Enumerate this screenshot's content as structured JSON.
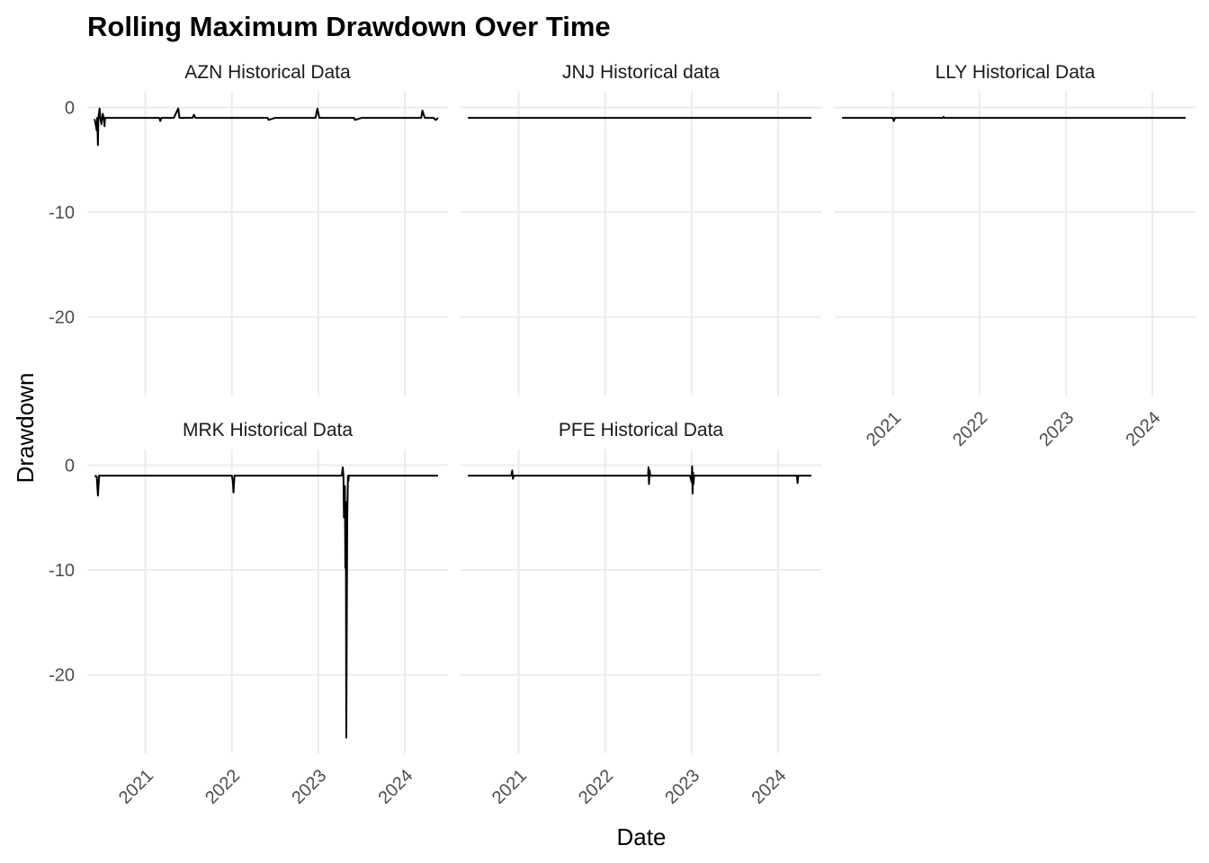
{
  "chart_data": {
    "type": "line",
    "layout": "facet_wrap",
    "title": "Rolling Maximum Drawdown Over Time",
    "xlabel": "Date",
    "ylabel": "Drawdown",
    "x_ticks": [
      "2021",
      "2022",
      "2023",
      "2024"
    ],
    "y_ticks": [
      0,
      -10,
      -20
    ],
    "xlim": [
      "2020-05-01",
      "2024-07-01"
    ],
    "ylim": [
      -27.5,
      1.5
    ],
    "grid": true,
    "legend": "none",
    "line_color": "#000000",
    "facets": [
      {
        "name": "AZN Historical Data",
        "x": [
          "2020-06-01",
          "2020-06-10",
          "2020-06-12",
          "2020-06-15",
          "2020-06-17",
          "2020-06-22",
          "2020-06-25",
          "2020-06-30",
          "2020-07-05",
          "2020-07-10",
          "2020-07-13",
          "2020-07-15",
          "2020-07-18",
          "2020-08-01",
          "2021-01-01",
          "2021-03-01",
          "2021-03-05",
          "2021-03-10",
          "2021-05-01",
          "2021-05-20",
          "2021-05-25",
          "2021-06-01",
          "2021-07-20",
          "2021-07-25",
          "2021-08-01",
          "2022-06-01",
          "2022-06-05",
          "2022-07-01",
          "2022-12-20",
          "2022-12-28",
          "2023-01-05",
          "2023-06-01",
          "2023-06-05",
          "2023-07-01",
          "2024-01-01",
          "2024-03-10",
          "2024-03-15",
          "2024-03-25",
          "2024-05-01",
          "2024-05-10",
          "2024-05-20"
        ],
        "y": [
          -1.1,
          -2.2,
          -1.0,
          -3.6,
          -1.0,
          -0.1,
          -1.0,
          -1.6,
          -0.6,
          -1.0,
          -1.8,
          -1.0,
          -1.0,
          -1.0,
          -1.0,
          -1.0,
          -1.3,
          -1.0,
          -1.0,
          -0.1,
          -1.0,
          -1.0,
          -1.0,
          -0.7,
          -1.0,
          -1.0,
          -1.2,
          -1.0,
          -1.0,
          -0.1,
          -1.0,
          -1.0,
          -1.2,
          -1.0,
          -1.0,
          -1.0,
          -0.3,
          -1.0,
          -1.0,
          -1.2,
          -1.0
        ]
      },
      {
        "name": "JNJ Historical data",
        "x": [
          "2020-06-01",
          "2024-05-20"
        ],
        "y": [
          -1.0,
          -1.0
        ]
      },
      {
        "name": "LLY Historical Data",
        "x": [
          "2020-06-01",
          "2021-01-01",
          "2021-01-05",
          "2021-01-10",
          "2021-08-01",
          "2021-08-03",
          "2021-08-06",
          "2024-05-20"
        ],
        "y": [
          -1.0,
          -1.0,
          -1.3,
          -1.0,
          -1.0,
          -0.9,
          -1.0,
          -1.0
        ]
      },
      {
        "name": "MRK Historical Data",
        "x": [
          "2020-06-01",
          "2020-06-10",
          "2020-06-15",
          "2020-06-20",
          "2020-06-25",
          "2022-01-01",
          "2022-01-05",
          "2022-01-08",
          "2022-01-12",
          "2022-01-20",
          "2023-03-01",
          "2023-04-10",
          "2023-04-14",
          "2023-04-17",
          "2023-04-19",
          "2023-04-23",
          "2023-04-25",
          "2023-04-27",
          "2023-04-29",
          "2023-05-01",
          "2023-05-03",
          "2023-05-06",
          "2023-05-08",
          "2023-05-10",
          "2023-05-20",
          "2024-05-20"
        ],
        "y": [
          -1.0,
          -1.1,
          -2.9,
          -1.0,
          -1.0,
          -1.0,
          -1.5,
          -2.6,
          -1.0,
          -1.0,
          -1.0,
          -1.0,
          -0.2,
          -1.0,
          -5.0,
          -2.0,
          -9.8,
          -3.5,
          -26.0,
          -15.0,
          -5.0,
          -1.0,
          -1.5,
          -1.0,
          -1.0,
          -1.0
        ]
      },
      {
        "name": "PFE Historical Data",
        "x": [
          "2020-06-01",
          "2020-12-01",
          "2020-12-05",
          "2020-12-08",
          "2020-12-12",
          "2022-07-01",
          "2022-07-03",
          "2022-07-05",
          "2022-07-08",
          "2022-07-10",
          "2022-07-15",
          "2022-12-25",
          "2023-01-01",
          "2023-01-03",
          "2023-01-05",
          "2023-01-07",
          "2023-01-09",
          "2023-01-11",
          "2023-01-15",
          "2024-03-20",
          "2024-03-23",
          "2024-03-26",
          "2024-03-29",
          "2024-05-20"
        ],
        "y": [
          -1.0,
          -1.0,
          -0.5,
          -1.3,
          -1.0,
          -1.0,
          -0.2,
          -1.8,
          -0.5,
          -1.0,
          -1.0,
          -1.0,
          -1.6,
          -0.1,
          -2.7,
          -0.7,
          -1.8,
          -1.0,
          -1.0,
          -1.0,
          -1.7,
          -1.0,
          -1.0,
          -1.0
        ]
      }
    ]
  }
}
